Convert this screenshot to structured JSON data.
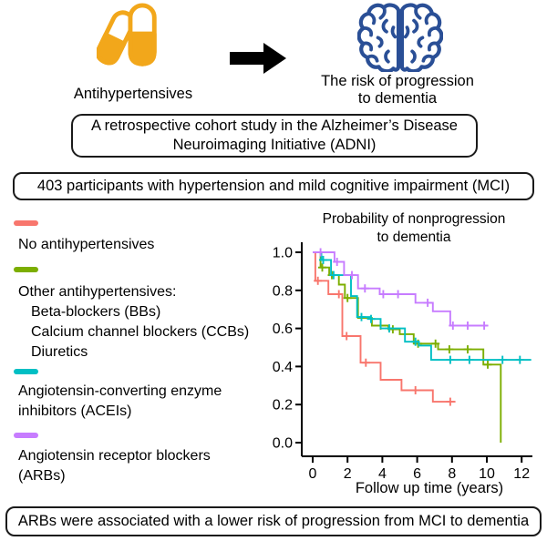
{
  "header": {
    "exposure_label": "Antihypertensives",
    "outcome_line1": "The risk of progression",
    "outcome_line2": "to dementia"
  },
  "boxes": {
    "study_line1": "A retrospective cohort study in the Alzheimer’s Disease",
    "study_line2": "Neuroimaging Initiative (ADNI)",
    "participants": "403 participants with hypertension and mild cognitive impairment (MCI)",
    "conclusion": "ARBs were associated with a lower risk of progression from MCI to dementia"
  },
  "icons": {
    "pills_icon": "two-capsules",
    "arrow_icon": "arrow-right",
    "brain_icon": "brain-top-view",
    "pills_color": "#F2A71B",
    "arrow_color": "#000000",
    "brain_color": "#2A4F96"
  },
  "legend": {
    "items": [
      {
        "key": "none",
        "color": "#F8766D",
        "indent_sub": false,
        "lines": [
          "No antihypertensives"
        ]
      },
      {
        "key": "other",
        "color": "#7CAE00",
        "indent_sub": true,
        "lines": [
          "Other antihypertensives:",
          "Beta-blockers (BBs)",
          "Calcium channel blockers (CCBs)",
          "Diuretics"
        ]
      },
      {
        "key": "acei",
        "color": "#00BFC4",
        "indent_sub": false,
        "lines": [
          "Angiotensin-converting enzyme",
          "inhibitors (ACEIs)"
        ]
      },
      {
        "key": "arb",
        "color": "#C77CFF",
        "indent_sub": false,
        "lines": [
          "Angiotensin receptor blockers",
          "(ARBs)"
        ]
      }
    ]
  },
  "chart_data": {
    "type": "line",
    "subtype": "kaplan-meier-step",
    "title": [
      "Probability of nonprogression",
      "to dementia"
    ],
    "xlabel": "Follow up time (years)",
    "ylabel": "",
    "xlim": [
      0,
      12.6
    ],
    "ylim": [
      0.0,
      1.0
    ],
    "xticks": [
      0,
      2,
      4,
      6,
      8,
      10,
      12
    ],
    "yticks": [
      1.0,
      0.8,
      0.6,
      0.4,
      0.2,
      0.0
    ],
    "grid": false,
    "legend_position": "left-outside",
    "series": [
      {
        "name": "No antihypertensives",
        "key": "none",
        "color": "#F8766D",
        "steps": [
          [
            0,
            1.0
          ],
          [
            0.15,
            0.85
          ],
          [
            0.9,
            0.78
          ],
          [
            1.7,
            0.56
          ],
          [
            2.75,
            0.42
          ],
          [
            3.9,
            0.33
          ],
          [
            5.1,
            0.275
          ],
          [
            6.9,
            0.215
          ]
        ],
        "end": 8.2,
        "censors": [
          0.3,
          1.5,
          1.95,
          3.05,
          5.9,
          7.9
        ]
      },
      {
        "name": "Other antihypertensives (BBs, CCBs, diuretics)",
        "key": "other",
        "color": "#7CAE00",
        "steps": [
          [
            0,
            1.0
          ],
          [
            0.45,
            0.92
          ],
          [
            0.95,
            0.88
          ],
          [
            1.5,
            0.83
          ],
          [
            1.85,
            0.76
          ],
          [
            2.6,
            0.655
          ],
          [
            3.4,
            0.615
          ],
          [
            4.35,
            0.595
          ],
          [
            5.0,
            0.57
          ],
          [
            5.8,
            0.52
          ],
          [
            7.2,
            0.49
          ],
          [
            9.8,
            0.41
          ],
          [
            10.8,
            0.0
          ]
        ],
        "end": 10.8,
        "censors": [
          0.55,
          1.1,
          2.0,
          3.9,
          4.6,
          6.05,
          7.05,
          7.85,
          8.9,
          10.05
        ]
      },
      {
        "name": "Angiotensin-converting enzyme inhibitors (ACEIs)",
        "key": "acei",
        "color": "#00BFC4",
        "steps": [
          [
            0,
            1.0
          ],
          [
            0.5,
            0.96
          ],
          [
            1.05,
            0.88
          ],
          [
            2.2,
            0.77
          ],
          [
            2.55,
            0.66
          ],
          [
            3.3,
            0.65
          ],
          [
            3.9,
            0.6
          ],
          [
            5.3,
            0.53
          ],
          [
            6.1,
            0.51
          ],
          [
            6.8,
            0.435
          ]
        ],
        "end": 12.55,
        "censors": [
          0.6,
          1.2,
          2.8,
          3.35,
          4.4,
          5.9,
          7.9,
          9.0,
          10.9,
          11.9
        ]
      },
      {
        "name": "Angiotensin receptor blockers (ARBs)",
        "key": "arb",
        "color": "#C77CFF",
        "steps": [
          [
            0,
            1.0
          ],
          [
            1.25,
            0.95
          ],
          [
            1.8,
            0.88
          ],
          [
            2.6,
            0.81
          ],
          [
            3.85,
            0.78
          ],
          [
            5.9,
            0.735
          ],
          [
            6.9,
            0.69
          ],
          [
            7.9,
            0.615
          ]
        ],
        "end": 10.05,
        "censors": [
          0.45,
          1.4,
          2.25,
          3.0,
          4.05,
          4.9,
          6.6,
          8.05,
          8.9,
          9.85
        ]
      }
    ]
  }
}
